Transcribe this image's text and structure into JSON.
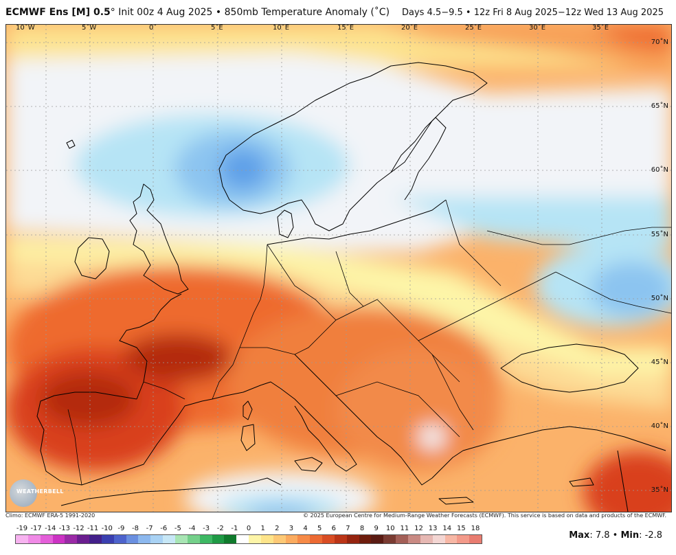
{
  "header": {
    "model": "ECMWF Ens [M] 0.5",
    "degree": "°",
    "init": "Init 00z 4 Aug 2025",
    "separator": "•",
    "field": "850mb Temperature Anomaly (˚C)",
    "valid": "Days 4.5−9.5 • 12z Fri 8 Aug 2025−12z Wed 13 Aug 2025"
  },
  "map": {
    "longitude_labels": [
      "10˚W",
      "5˚W",
      "0˚",
      "5˚E",
      "10˚E",
      "15˚E",
      "20˚E",
      "25˚E",
      "30˚E",
      "35˚E"
    ],
    "latitude_labels": [
      "70˚N",
      "65˚N",
      "60˚N",
      "55˚N",
      "50˚N",
      "45˚N",
      "40˚N",
      "35˚N"
    ],
    "colors": {
      "ocean_base": "#fde1b8",
      "neutral": "#f2f4f8",
      "cool_light": "#b6e4f5",
      "cool_mid": "#8cc4f0",
      "cool_deep": "#5ea0e8",
      "warm_yellow": "#fdf5a8",
      "warm_light": "#fddb95",
      "warm_orange": "#f9a45c",
      "warm_deep": "#ee6a2e",
      "hot": "#d9401d",
      "hottest": "#b42a10"
    }
  },
  "footer": {
    "climo": "Climo: ECMWF ERA-5 1991-2020",
    "copyright": "© 2025 European Centre for Medium-Range Weather Forecasts (ECMWF). This service is based on data and products of the ECMWF."
  },
  "legend": {
    "ticks": [
      "-19",
      "-17",
      "-14",
      "-13",
      "-12",
      "-11",
      "-10",
      "-9",
      "-8",
      "-7",
      "-6",
      "-5",
      "-4",
      "-3",
      "-2",
      "-1",
      "0",
      "1",
      "2",
      "3",
      "4",
      "5",
      "6",
      "7",
      "8",
      "9",
      "10",
      "11",
      "12",
      "13",
      "14",
      "15",
      "18"
    ],
    "colors": [
      "#f7b3f0",
      "#f08ae6",
      "#e45fd9",
      "#cc33c4",
      "#9a2aa6",
      "#6a1e8f",
      "#43208a",
      "#3a3fb0",
      "#4d63cc",
      "#6a8fe0",
      "#8cb8ee",
      "#a9d2f4",
      "#c7e7f6",
      "#a8e5b4",
      "#74d08a",
      "#3db863",
      "#1f9a45",
      "#0f7a2c",
      "#ffffff",
      "#fdf5a8",
      "#fde48a",
      "#fdc976",
      "#fbab5f",
      "#f68a47",
      "#ec6a33",
      "#d94d24",
      "#bb3517",
      "#95240f",
      "#6e1d0d",
      "#5a1b13",
      "#7a3b32",
      "#a35f57",
      "#c98a83",
      "#e6b8b3",
      "#f3d6d3",
      "#f7b7a5",
      "#f39a8a",
      "#e87c70"
    ]
  },
  "stats": {
    "max_label": "Max",
    "max_value": ": 7.8",
    "sep": " • ",
    "min_label": "Min",
    "min_value": ": -2.8"
  },
  "logo": {
    "text": "WEATHERBELL"
  }
}
